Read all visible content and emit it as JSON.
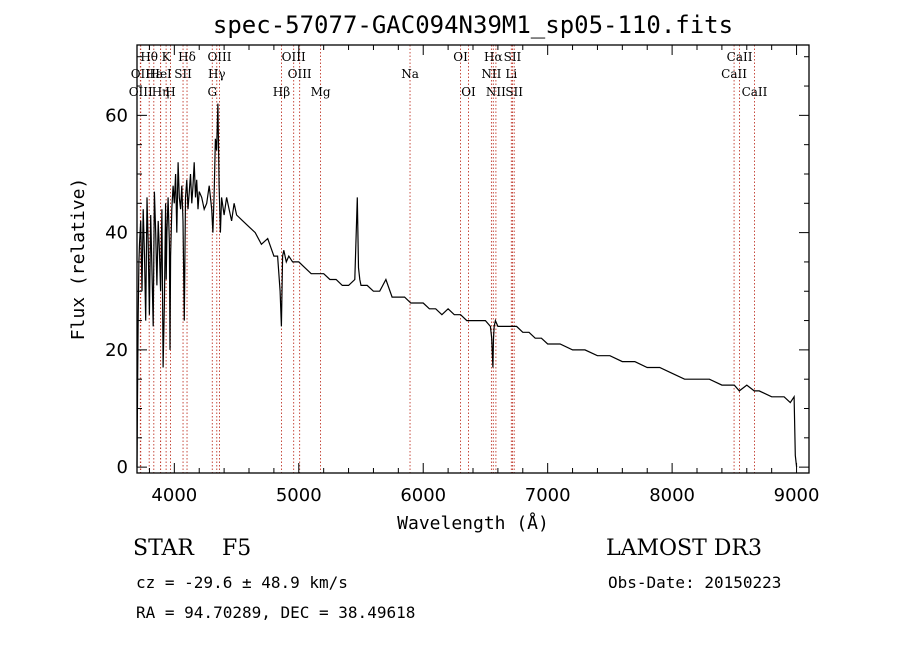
{
  "chart_data": {
    "type": "line",
    "title": "spec-57077-GAC094N39M1_sp05-110.fits",
    "xlabel": "Wavelength (Å)",
    "ylabel": "Flux (relative)",
    "xlim": [
      3700,
      9100
    ],
    "ylim": [
      -1,
      72
    ],
    "xticks": [
      4000,
      5000,
      6000,
      7000,
      8000,
      9000
    ],
    "xtick_labels": [
      "4000",
      "5000",
      "6000",
      "7000",
      "8000",
      "9000"
    ],
    "yticks": [
      0,
      20,
      40,
      60
    ],
    "ytick_labels": [
      "0",
      "20",
      "40",
      "60"
    ],
    "grid": false,
    "series": [
      {
        "name": "flux",
        "color": "#000000",
        "x": [
          3700,
          3705,
          3710,
          3715,
          3720,
          3730,
          3740,
          3750,
          3760,
          3770,
          3780,
          3790,
          3800,
          3810,
          3820,
          3830,
          3840,
          3850,
          3860,
          3870,
          3880,
          3890,
          3900,
          3910,
          3920,
          3930,
          3935,
          3940,
          3950,
          3960,
          3965,
          3970,
          3980,
          3990,
          4000,
          4010,
          4020,
          4030,
          4040,
          4050,
          4060,
          4070,
          4080,
          4090,
          4100,
          4110,
          4120,
          4130,
          4140,
          4150,
          4160,
          4170,
          4180,
          4190,
          4200,
          4220,
          4240,
          4260,
          4280,
          4300,
          4310,
          4320,
          4330,
          4340,
          4350,
          4360,
          4370,
          4380,
          4400,
          4420,
          4440,
          4460,
          4480,
          4500,
          4550,
          4600,
          4650,
          4700,
          4750,
          4800,
          4830,
          4850,
          4860,
          4870,
          4880,
          4900,
          4920,
          4950,
          5000,
          5050,
          5100,
          5150,
          5200,
          5250,
          5300,
          5350,
          5400,
          5450,
          5470,
          5480,
          5490,
          5500,
          5550,
          5600,
          5650,
          5700,
          5750,
          5800,
          5850,
          5900,
          5950,
          6000,
          6050,
          6100,
          6150,
          6200,
          6250,
          6300,
          6350,
          6400,
          6450,
          6500,
          6540,
          6550,
          6560,
          6565,
          6570,
          6580,
          6600,
          6650,
          6700,
          6750,
          6800,
          6850,
          6900,
          6950,
          7000,
          7100,
          7200,
          7300,
          7400,
          7500,
          7600,
          7700,
          7800,
          7900,
          8000,
          8100,
          8200,
          8300,
          8400,
          8500,
          8540,
          8600,
          8660,
          8700,
          8800,
          8900,
          8950,
          8980,
          8990,
          9000
        ],
        "y": [
          0,
          14,
          26,
          35,
          38,
          42,
          30,
          44,
          36,
          25,
          46,
          38,
          26,
          43,
          34,
          24,
          47,
          40,
          31,
          42,
          37,
          30,
          44,
          17,
          28,
          45,
          32,
          40,
          46,
          38,
          20,
          36,
          44,
          48,
          45,
          50,
          40,
          52,
          46,
          44,
          48,
          42,
          25,
          46,
          49,
          44,
          47,
          50,
          45,
          48,
          52,
          46,
          49,
          44,
          47,
          46,
          44,
          45,
          48,
          44,
          40,
          47,
          56,
          54,
          62,
          48,
          40,
          46,
          43,
          46,
          44,
          42,
          45,
          43,
          42,
          41,
          40,
          38,
          39,
          36,
          36,
          30,
          24,
          36,
          37,
          35,
          36,
          35,
          35,
          34,
          33,
          33,
          33,
          32,
          32,
          31,
          31,
          32,
          46,
          34,
          32,
          31,
          31,
          30,
          30,
          32,
          29,
          29,
          29,
          28,
          28,
          28,
          27,
          27,
          26,
          27,
          26,
          26,
          25,
          25,
          25,
          25,
          24,
          22,
          17,
          22,
          24,
          25,
          24,
          24,
          24,
          24,
          23,
          23,
          22,
          22,
          21,
          21,
          20,
          20,
          19,
          19,
          18,
          18,
          17,
          17,
          16,
          15,
          15,
          15,
          14,
          14,
          13,
          14,
          13,
          13,
          12,
          12,
          11,
          12,
          2,
          0
        ]
      }
    ],
    "lines": [
      {
        "label": "Hθ",
        "x": 3798,
        "row": 1
      },
      {
        "label": "OII",
        "x": 3727,
        "row": 2
      },
      {
        "label": "OIII",
        "x": 3730,
        "row": 3
      },
      {
        "label": "Hε",
        "x": 3835,
        "row": 2
      },
      {
        "label": "Hη",
        "x": 3889,
        "row": 3
      },
      {
        "label": "K",
        "x": 3934,
        "row": 1
      },
      {
        "label": "HeI",
        "x": 3890,
        "row": 2
      },
      {
        "label": "H",
        "x": 3969,
        "row": 3
      },
      {
        "label": "SII",
        "x": 4070,
        "row": 2
      },
      {
        "label": "Hδ",
        "x": 4102,
        "row": 1
      },
      {
        "label": "OIII",
        "x": 4363,
        "row": 1
      },
      {
        "label": "Hγ",
        "x": 4341,
        "row": 2
      },
      {
        "label": "G",
        "x": 4305,
        "row": 3
      },
      {
        "label": "Hβ",
        "x": 4861,
        "row": 3
      },
      {
        "label": "OIII",
        "x": 4959,
        "row": 1
      },
      {
        "label": "OIII",
        "x": 5007,
        "row": 2
      },
      {
        "label": "Mg",
        "x": 5175,
        "row": 3
      },
      {
        "label": "Na",
        "x": 5894,
        "row": 2
      },
      {
        "label": "OI",
        "x": 6300,
        "row": 1
      },
      {
        "label": "OI",
        "x": 6364,
        "row": 3
      },
      {
        "label": "Hα",
        "x": 6563,
        "row": 1
      },
      {
        "label": "NII",
        "x": 6548,
        "row": 2
      },
      {
        "label": "NII",
        "x": 6584,
        "row": 3
      },
      {
        "label": "SII",
        "x": 6717,
        "row": 1
      },
      {
        "label": "Li",
        "x": 6708,
        "row": 2
      },
      {
        "label": "SII",
        "x": 6731,
        "row": 3
      },
      {
        "label": "CaII",
        "x": 8498,
        "row": 2
      },
      {
        "label": "CaII",
        "x": 8542,
        "row": 1
      },
      {
        "label": "CaII",
        "x": 8662,
        "row": 3
      }
    ]
  },
  "info": {
    "object_class": "STAR",
    "subclass": "F5",
    "survey": "LAMOST DR3",
    "redshift": "cz = -29.6 ± 48.9 km/s",
    "obs_date": "Obs-Date: 20150223",
    "coordinates": "RA =  94.70289, DEC =  38.49618"
  }
}
